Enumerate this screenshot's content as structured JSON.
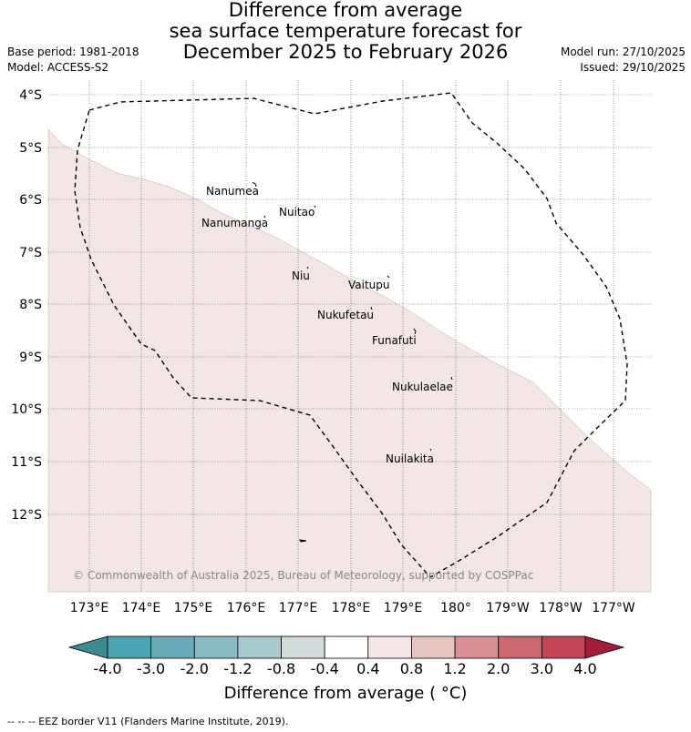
{
  "title": {
    "line1": "Difference from average",
    "line2": "sea surface temperature forecast for",
    "line3": "December 2025 to February 2026"
  },
  "meta_left": {
    "base_period": "Base period: 1981-2018",
    "model": "Model: ACCESS-S2"
  },
  "meta_right": {
    "model_run": "Model run: 27/10/2025",
    "issued": "Issued: 29/10/2025"
  },
  "map": {
    "lat_labels": [
      "4°S",
      "5°S",
      "6°S",
      "7°S",
      "8°S",
      "9°S",
      "10°S",
      "11°S",
      "12°S"
    ],
    "lon_labels": [
      "173°E",
      "174°E",
      "175°E",
      "176°E",
      "177°E",
      "178°E",
      "179°E",
      "180°",
      "179°W",
      "178°W",
      "177°W"
    ],
    "islands": [
      "Nanumea",
      "Nuitao",
      "Nanumanga",
      "Niu",
      "Vaitupu",
      "Nukufetau",
      "Funafuti",
      "Nukulaelae",
      "Nuilakita"
    ],
    "copyright": "© Commonwealth of Australia 2025, Bureau of Meteorology, supported by COSPPac",
    "anomaly_fill_color": "#f3e6e4",
    "eez_line_color": "#000000"
  },
  "colorbar": {
    "tick_labels": [
      "-4.0",
      "-3.0",
      "-2.0",
      "-1.2",
      "-0.8",
      "-0.4",
      "0.4",
      "0.8",
      "1.2",
      "2.0",
      "3.0",
      "4.0"
    ],
    "colors": [
      "#3a8a92",
      "#4ba3b3",
      "#6aaab8",
      "#8abbc4",
      "#a8c8cc",
      "#d2dadb",
      "#ffffff",
      "#f3e6e4",
      "#e8c4c0",
      "#d99096",
      "#cd6871",
      "#c44556",
      "#a51c3a"
    ],
    "title": "Difference from average ( °C)"
  },
  "footnote": "-- -- -- EEZ border V11 (Flanders Marine Institute, 2019)."
}
